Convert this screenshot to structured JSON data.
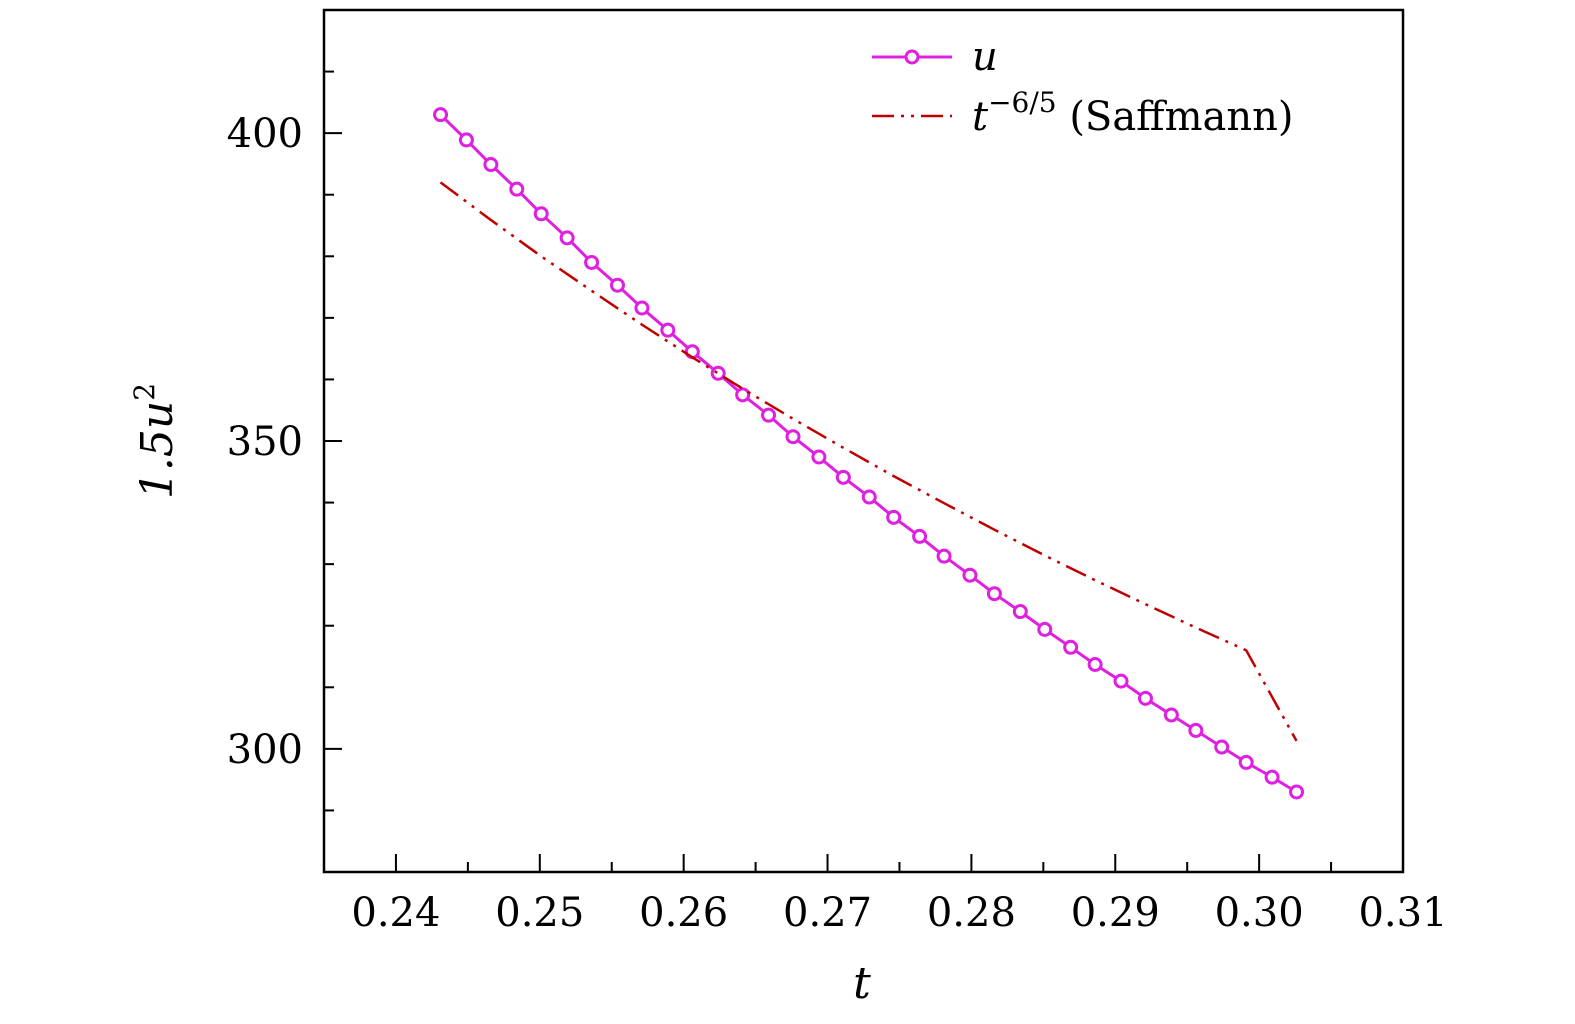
{
  "chart_data": {
    "type": "line",
    "title": "",
    "xlabel": "t",
    "ylabel": {
      "base": "1.5u",
      "sup": "2"
    },
    "xlim": [
      0.235,
      0.31
    ],
    "ylim": [
      280,
      420
    ],
    "xticks": [
      "0.24",
      "0.25",
      "0.26",
      "0.27",
      "0.28",
      "0.29",
      "0.30",
      "0.31"
    ],
    "xtick_values": [
      0.24,
      0.25,
      0.26,
      0.27,
      0.28,
      0.29,
      0.3,
      0.31
    ],
    "yticks": [
      "300",
      "350",
      "400"
    ],
    "ytick_values": [
      300,
      350,
      400
    ],
    "grid": false,
    "legend_position": "top-right",
    "series": [
      {
        "name": "u",
        "legend_label": "u",
        "color": "#e020e0",
        "style": "solid",
        "marker": "open-circle",
        "x": [
          0.2431,
          0.2449,
          0.2466,
          0.2484,
          0.2501,
          0.2519,
          0.2536,
          0.2554,
          0.2571,
          0.2589,
          0.2606,
          0.2624,
          0.2641,
          0.2659,
          0.2676,
          0.2694,
          0.2711,
          0.2729,
          0.2746,
          0.2764,
          0.2781,
          0.2799,
          0.2816,
          0.2834,
          0.2851,
          0.2869,
          0.2886,
          0.2904,
          0.2921,
          0.2939,
          0.2956,
          0.2974,
          0.2991,
          0.3009,
          0.3026
        ],
        "y": [
          403.0,
          398.9,
          394.9,
          390.9,
          386.9,
          383.0,
          379.0,
          375.3,
          371.6,
          368.0,
          364.5,
          361.0,
          357.5,
          354.2,
          350.7,
          347.4,
          344.1,
          340.9,
          337.6,
          334.5,
          331.3,
          328.2,
          325.2,
          322.3,
          319.4,
          316.5,
          313.7,
          311.0,
          308.2,
          305.5,
          303.0,
          300.3,
          297.8,
          295.4,
          293.0
        ]
      },
      {
        "name": "t^{-6/5} (Saffmann)",
        "legend_label_base": "t",
        "legend_label_sup": "−6/5",
        "legend_label_rest": " (Saffmann)",
        "color": "#c00000",
        "style": "dash-dot-dot",
        "marker": "none",
        "x": [
          0.2431,
          0.2466,
          0.2501,
          0.2536,
          0.2571,
          0.2606,
          0.2641,
          0.2676,
          0.2711,
          0.2746,
          0.2781,
          0.2816,
          0.2851,
          0.2886,
          0.2921,
          0.2956,
          0.2991,
          0.3026
        ],
        "y": [
          392.0,
          385.9,
          380.0,
          374.4,
          368.9,
          363.6,
          358.5,
          353.6,
          348.9,
          344.3,
          339.9,
          335.6,
          331.4,
          327.4,
          323.5,
          319.7,
          316.0,
          301.3
        ]
      }
    ]
  }
}
